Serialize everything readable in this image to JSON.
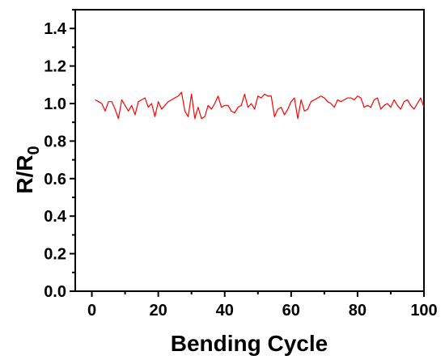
{
  "chart_data": {
    "type": "line",
    "title": "",
    "xlabel": "Bending Cycle",
    "ylabel": "R/R",
    "ylabel_subscript": "0",
    "xlim": [
      -5,
      100
    ],
    "ylim": [
      0.0,
      1.5
    ],
    "xticks": [
      0,
      20,
      40,
      60,
      80,
      100
    ],
    "yticks": [
      0.0,
      0.2,
      0.4,
      0.6,
      0.8,
      1.0,
      1.2,
      1.4
    ],
    "xtick_labels": [
      "0",
      "20",
      "40",
      "60",
      "80",
      "100"
    ],
    "ytick_labels": [
      "0.0",
      "0.2",
      "0.4",
      "0.6",
      "0.8",
      "1.0",
      "1.2",
      "1.4"
    ],
    "grid": false,
    "legend": "none",
    "series": [
      {
        "color": "#ff0000",
        "x": [
          1,
          2,
          3,
          4,
          5,
          6,
          7,
          8,
          9,
          10,
          11,
          12,
          13,
          14,
          15,
          16,
          17,
          18,
          19,
          20,
          21,
          22,
          23,
          24,
          25,
          26,
          27,
          28,
          29,
          30,
          31,
          32,
          33,
          34,
          35,
          36,
          37,
          38,
          39,
          40,
          41,
          42,
          43,
          44,
          45,
          46,
          47,
          48,
          49,
          50,
          51,
          52,
          53,
          54,
          55,
          56,
          57,
          58,
          59,
          60,
          61,
          62,
          63,
          64,
          65,
          66,
          67,
          68,
          69,
          70,
          71,
          72,
          73,
          74,
          75,
          76,
          77,
          78,
          79,
          80,
          81,
          82,
          83,
          84,
          85,
          86,
          87,
          88,
          89,
          90,
          91,
          92,
          93,
          94,
          95,
          96,
          97,
          98,
          99,
          100
        ],
        "y": [
          1.02,
          1.01,
          1.0,
          0.96,
          1.01,
          1.01,
          0.97,
          0.92,
          1.02,
          0.99,
          0.96,
          0.99,
          0.94,
          1.01,
          1.02,
          1.03,
          0.98,
          1.0,
          0.93,
          1.01,
          0.97,
          0.99,
          1.01,
          1.02,
          1.03,
          1.04,
          1.06,
          0.96,
          0.93,
          1.05,
          0.92,
          0.98,
          0.92,
          0.93,
          0.99,
          0.97,
          1.0,
          1.04,
          0.98,
          0.99,
          0.99,
          0.96,
          0.95,
          0.98,
          0.99,
          1.05,
          0.98,
          1.0,
          0.97,
          1.04,
          1.03,
          1.05,
          1.04,
          1.04,
          0.93,
          0.97,
          0.98,
          0.94,
          0.97,
          1.01,
          1.03,
          0.92,
          1.02,
          0.96,
          0.97,
          1.01,
          1.02,
          1.03,
          1.04,
          1.03,
          1.01,
          1.0,
          0.98,
          1.02,
          1.01,
          1.02,
          1.03,
          1.03,
          1.02,
          1.04,
          1.03,
          0.98,
          0.99,
          0.98,
          1.02,
          1.03,
          0.97,
          0.99,
          1.0,
          0.98,
          1.02,
          0.99,
          0.97,
          1.01,
          1.02,
          0.99,
          0.97,
          1.0,
          1.03,
          0.98
        ]
      }
    ]
  }
}
